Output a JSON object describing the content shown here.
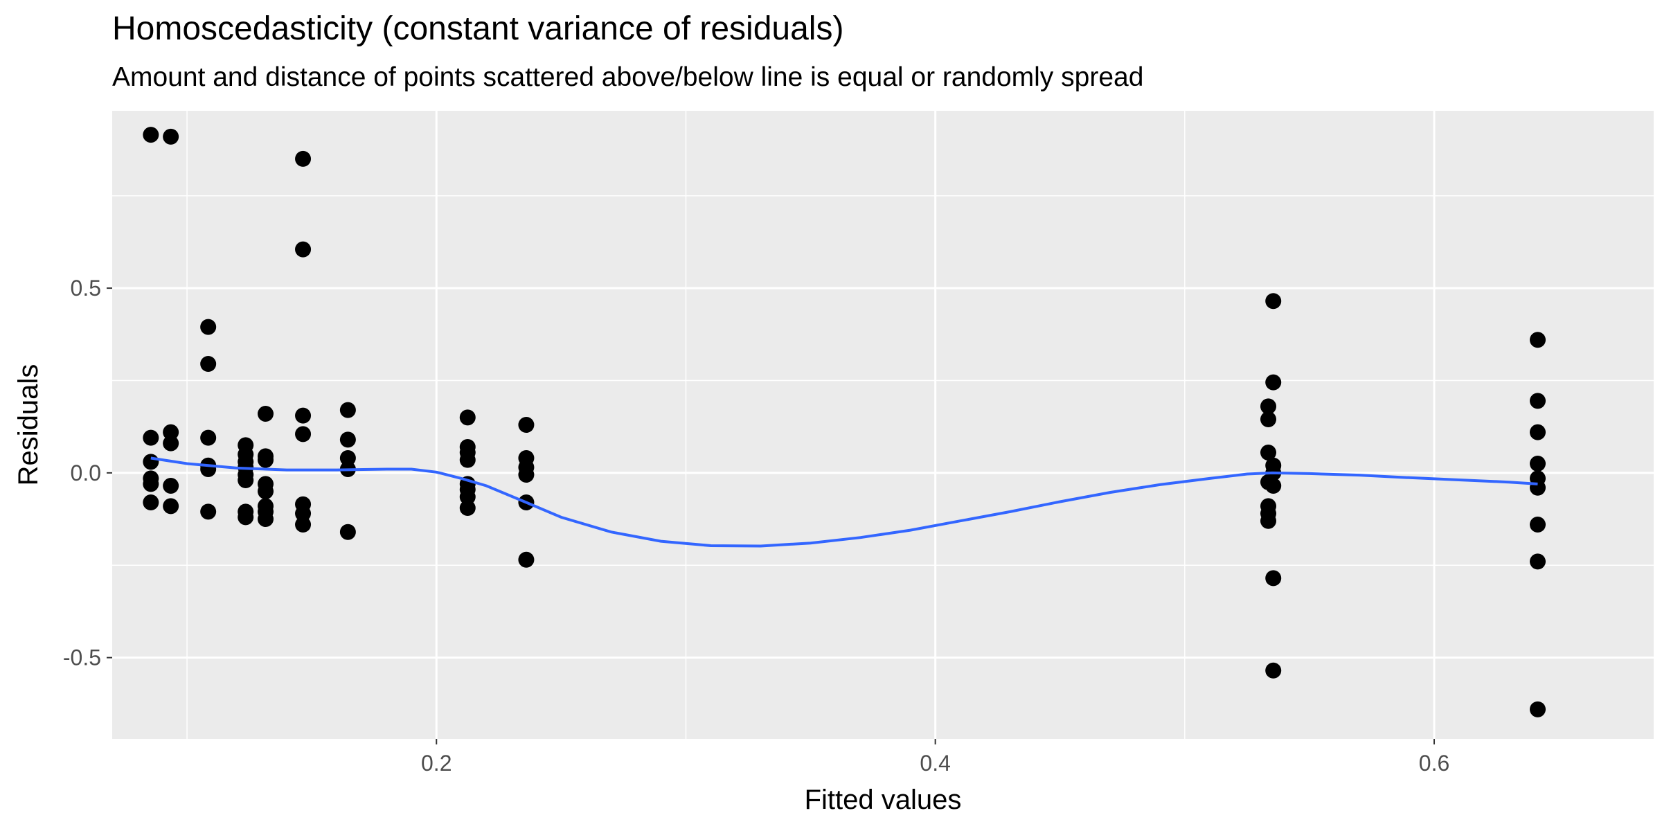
{
  "chart_data": {
    "type": "scatter",
    "title": "Homoscedasticity (constant variance of residuals)",
    "subtitle": "Amount and distance of points scattered above/below line is equal or randomly spread",
    "xlabel": "Fitted values",
    "ylabel": "Residuals",
    "xlim": [
      0.07,
      0.688
    ],
    "ylim": [
      -0.72,
      0.98
    ],
    "x_ticks": [
      0.2,
      0.4,
      0.6
    ],
    "x_tick_labels": [
      "0.2",
      "0.4",
      "0.6"
    ],
    "y_ticks": [
      -0.5,
      0.0,
      0.5
    ],
    "y_tick_labels": [
      "-0.5",
      "0.0",
      "0.5"
    ],
    "grid": true,
    "panel_color": "#ebebeb",
    "grid_color": "#ffffff",
    "point_color": "#000000",
    "smooth_color": "#3366ff",
    "points": [
      {
        "x": 0.0855,
        "y": 0.915
      },
      {
        "x": 0.0855,
        "y": 0.095
      },
      {
        "x": 0.0855,
        "y": 0.03
      },
      {
        "x": 0.0855,
        "y": -0.015
      },
      {
        "x": 0.0855,
        "y": -0.03
      },
      {
        "x": 0.0855,
        "y": -0.08
      },
      {
        "x": 0.0935,
        "y": 0.91
      },
      {
        "x": 0.0935,
        "y": 0.11
      },
      {
        "x": 0.0935,
        "y": 0.08
      },
      {
        "x": 0.0935,
        "y": -0.035
      },
      {
        "x": 0.0935,
        "y": -0.09
      },
      {
        "x": 0.1085,
        "y": 0.395
      },
      {
        "x": 0.1085,
        "y": 0.295
      },
      {
        "x": 0.1085,
        "y": 0.095
      },
      {
        "x": 0.1085,
        "y": 0.02
      },
      {
        "x": 0.1085,
        "y": 0.01
      },
      {
        "x": 0.1085,
        "y": -0.105
      },
      {
        "x": 0.1235,
        "y": 0.075
      },
      {
        "x": 0.1235,
        "y": 0.05
      },
      {
        "x": 0.1235,
        "y": 0.03
      },
      {
        "x": 0.1235,
        "y": 0.015
      },
      {
        "x": 0.1235,
        "y": -0.005
      },
      {
        "x": 0.1235,
        "y": -0.02
      },
      {
        "x": 0.1235,
        "y": -0.105
      },
      {
        "x": 0.1235,
        "y": -0.12
      },
      {
        "x": 0.1315,
        "y": 0.16
      },
      {
        "x": 0.1315,
        "y": 0.045
      },
      {
        "x": 0.1315,
        "y": 0.035
      },
      {
        "x": 0.1315,
        "y": -0.03
      },
      {
        "x": 0.1315,
        "y": -0.05
      },
      {
        "x": 0.1315,
        "y": -0.09
      },
      {
        "x": 0.1315,
        "y": -0.105
      },
      {
        "x": 0.1315,
        "y": -0.125
      },
      {
        "x": 0.1465,
        "y": 0.85
      },
      {
        "x": 0.1465,
        "y": 0.605
      },
      {
        "x": 0.1465,
        "y": 0.155
      },
      {
        "x": 0.1465,
        "y": 0.105
      },
      {
        "x": 0.1465,
        "y": -0.085
      },
      {
        "x": 0.1465,
        "y": -0.11
      },
      {
        "x": 0.1465,
        "y": -0.14
      },
      {
        "x": 0.1645,
        "y": 0.17
      },
      {
        "x": 0.1645,
        "y": 0.09
      },
      {
        "x": 0.1645,
        "y": 0.04
      },
      {
        "x": 0.1645,
        "y": 0.01
      },
      {
        "x": 0.1645,
        "y": -0.16
      },
      {
        "x": 0.2125,
        "y": 0.15
      },
      {
        "x": 0.2125,
        "y": 0.07
      },
      {
        "x": 0.2125,
        "y": 0.055
      },
      {
        "x": 0.2125,
        "y": 0.035
      },
      {
        "x": 0.2125,
        "y": -0.03
      },
      {
        "x": 0.2125,
        "y": -0.045
      },
      {
        "x": 0.2125,
        "y": -0.065
      },
      {
        "x": 0.2125,
        "y": -0.095
      },
      {
        "x": 0.236,
        "y": 0.13
      },
      {
        "x": 0.236,
        "y": 0.04
      },
      {
        "x": 0.236,
        "y": 0.015
      },
      {
        "x": 0.236,
        "y": -0.005
      },
      {
        "x": 0.236,
        "y": -0.08
      },
      {
        "x": 0.236,
        "y": -0.235
      },
      {
        "x": 0.5355,
        "y": 0.465
      },
      {
        "x": 0.5355,
        "y": 0.245
      },
      {
        "x": 0.5335,
        "y": 0.18
      },
      {
        "x": 0.5335,
        "y": 0.145
      },
      {
        "x": 0.5335,
        "y": 0.055
      },
      {
        "x": 0.5355,
        "y": 0.02
      },
      {
        "x": 0.5355,
        "y": 0.0
      },
      {
        "x": 0.5335,
        "y": -0.025
      },
      {
        "x": 0.5355,
        "y": -0.035
      },
      {
        "x": 0.5335,
        "y": -0.09
      },
      {
        "x": 0.5335,
        "y": -0.11
      },
      {
        "x": 0.5335,
        "y": -0.13
      },
      {
        "x": 0.5355,
        "y": -0.285
      },
      {
        "x": 0.5355,
        "y": -0.535
      },
      {
        "x": 0.6415,
        "y": 0.36
      },
      {
        "x": 0.6415,
        "y": 0.195
      },
      {
        "x": 0.6415,
        "y": 0.11
      },
      {
        "x": 0.6415,
        "y": 0.025
      },
      {
        "x": 0.6415,
        "y": -0.015
      },
      {
        "x": 0.6415,
        "y": -0.04
      },
      {
        "x": 0.6415,
        "y": -0.14
      },
      {
        "x": 0.6415,
        "y": -0.24
      },
      {
        "x": 0.6415,
        "y": -0.64
      }
    ],
    "smooth_line": [
      {
        "x": 0.0855,
        "y": 0.04
      },
      {
        "x": 0.1,
        "y": 0.025
      },
      {
        "x": 0.12,
        "y": 0.013
      },
      {
        "x": 0.14,
        "y": 0.008
      },
      {
        "x": 0.16,
        "y": 0.008
      },
      {
        "x": 0.18,
        "y": 0.01
      },
      {
        "x": 0.19,
        "y": 0.01
      },
      {
        "x": 0.2,
        "y": 0.002
      },
      {
        "x": 0.21,
        "y": -0.015
      },
      {
        "x": 0.22,
        "y": -0.035
      },
      {
        "x": 0.236,
        "y": -0.08
      },
      {
        "x": 0.25,
        "y": -0.12
      },
      {
        "x": 0.27,
        "y": -0.16
      },
      {
        "x": 0.29,
        "y": -0.185
      },
      {
        "x": 0.31,
        "y": -0.197
      },
      {
        "x": 0.33,
        "y": -0.198
      },
      {
        "x": 0.35,
        "y": -0.19
      },
      {
        "x": 0.37,
        "y": -0.175
      },
      {
        "x": 0.39,
        "y": -0.155
      },
      {
        "x": 0.41,
        "y": -0.13
      },
      {
        "x": 0.43,
        "y": -0.105
      },
      {
        "x": 0.45,
        "y": -0.078
      },
      {
        "x": 0.47,
        "y": -0.053
      },
      {
        "x": 0.49,
        "y": -0.032
      },
      {
        "x": 0.51,
        "y": -0.015
      },
      {
        "x": 0.525,
        "y": -0.003
      },
      {
        "x": 0.535,
        "y": 0.0
      },
      {
        "x": 0.55,
        "y": -0.002
      },
      {
        "x": 0.57,
        "y": -0.006
      },
      {
        "x": 0.59,
        "y": -0.013
      },
      {
        "x": 0.61,
        "y": -0.019
      },
      {
        "x": 0.63,
        "y": -0.025
      },
      {
        "x": 0.6415,
        "y": -0.03
      }
    ]
  }
}
